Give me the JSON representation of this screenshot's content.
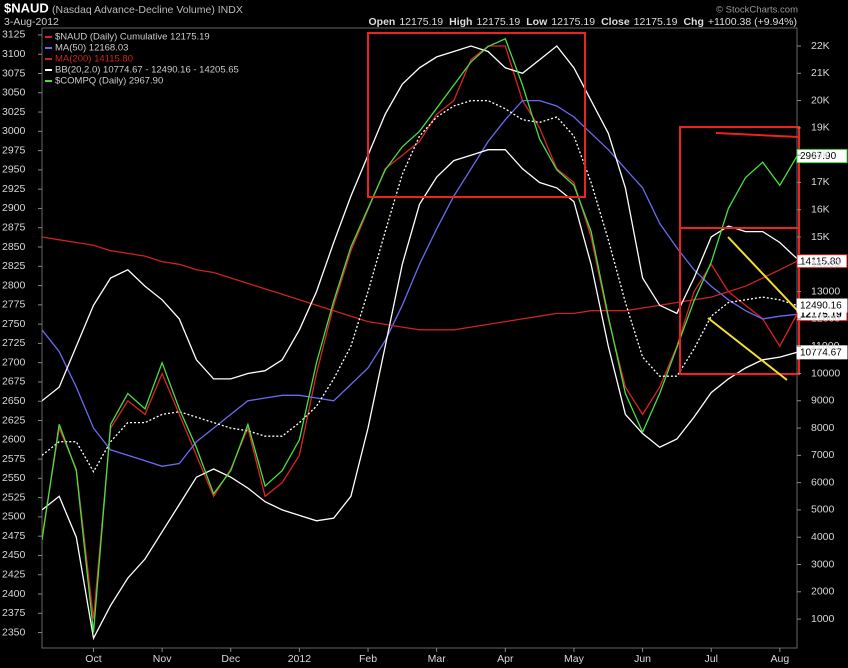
{
  "chart_data": {
    "type": "line",
    "title": "$NAUD",
    "subtitle": "(Nasdaq Advance-Decline Volume) INDX",
    "date": "3-Aug-2012",
    "quote": [
      {
        "label": "Open",
        "value": "12175.19"
      },
      {
        "label": "High",
        "value": "12175.19"
      },
      {
        "label": "Low",
        "value": "12175.19"
      },
      {
        "label": "Close",
        "value": "12175.19"
      },
      {
        "label": "Chg",
        "value": "+1100.38 (+9.94%)"
      }
    ],
    "watermark": "© StockCharts.com",
    "categories": [
      null,
      null,
      null,
      "Oct",
      null,
      null,
      null,
      "Nov",
      null,
      null,
      null,
      "Dec",
      null,
      null,
      null,
      "2012",
      null,
      null,
      null,
      "Feb",
      null,
      null,
      null,
      "Mar",
      null,
      null,
      null,
      "Apr",
      null,
      null,
      null,
      "May",
      null,
      null,
      null,
      "Jun",
      null,
      null,
      null,
      "Jul",
      null,
      null,
      null,
      "Aug",
      null
    ],
    "ylim": [
      2330,
      3134
    ],
    "yticks": [
      2350,
      2375,
      2400,
      2425,
      2450,
      2475,
      2500,
      2525,
      2550,
      2575,
      2600,
      2625,
      2650,
      2675,
      2700,
      2725,
      2750,
      2775,
      2800,
      2825,
      2850,
      2875,
      2900,
      2925,
      2950,
      2975,
      3000,
      3025,
      3050,
      3075,
      3100,
      3125
    ],
    "y2lim": [
      -60,
      22660
    ],
    "y2ticks": [
      1000,
      2000,
      3000,
      4000,
      5000,
      6000,
      7000,
      8000,
      9000,
      10000,
      11000,
      12000,
      13000,
      14000,
      {
        "value": 15000,
        "label": "15K"
      },
      {
        "value": 16000,
        "label": "16K"
      },
      {
        "value": 17000,
        "label": "17K"
      },
      {
        "value": 18000,
        "label": "18K"
      },
      {
        "value": 19000,
        "label": "19K"
      },
      {
        "value": 20000,
        "label": "20K"
      },
      {
        "value": 21000,
        "label": "21K"
      },
      {
        "value": 22000,
        "label": "22K"
      }
    ],
    "grid": false,
    "series": [
      {
        "name": "$NAUD (Daily) Cumulative 12175.19",
        "color": "#dd2222",
        "axis": "y2",
        "last_label": "12175.19",
        "values": [
          4000,
          8000,
          6500,
          1000,
          8000,
          9000,
          8500,
          10000,
          8500,
          7000,
          5500,
          6500,
          8000,
          5500,
          6000,
          7000,
          10000,
          12500,
          14500,
          16000,
          17500,
          18000,
          18500,
          19500,
          20000,
          21500,
          22000,
          22000,
          20000,
          19000,
          17500,
          17000,
          15000,
          12000,
          9500,
          8500,
          9500,
          11000,
          13000,
          14000,
          13000,
          12500,
          12000,
          11000,
          12175.19
        ]
      },
      {
        "name": "MA(50) 12168.03",
        "color": "#6a6af0",
        "axis": "y2",
        "values": [
          11600,
          10800,
          9500,
          8000,
          7200,
          7000,
          6800,
          6600,
          6700,
          7500,
          8000,
          8500,
          9000,
          9100,
          9200,
          9200,
          9100,
          9000,
          9600,
          10200,
          11200,
          12500,
          14000,
          15300,
          16500,
          17500,
          18500,
          19300,
          20000,
          20000,
          19800,
          19400,
          18800,
          18200,
          17500,
          16800,
          15500,
          14600,
          13800,
          13200,
          12700,
          12300,
          12000,
          12100,
          12168.03
        ]
      },
      {
        "name": "MA(200) 14115.80",
        "color": "#cc2222",
        "axis": "y2",
        "last_label": "14115.80",
        "values": [
          15000,
          14900,
          14800,
          14700,
          14500,
          14400,
          14300,
          14100,
          14000,
          13800,
          13700,
          13500,
          13300,
          13100,
          12900,
          12700,
          12500,
          12300,
          12100,
          11900,
          11800,
          11700,
          11600,
          11600,
          11600,
          11700,
          11800,
          11900,
          12000,
          12100,
          12200,
          12200,
          12300,
          12300,
          12300,
          12400,
          12500,
          12600,
          12700,
          12800,
          13000,
          13200,
          13500,
          13800,
          14115.8
        ]
      },
      {
        "name": "BB(20,2.0) 10774.67 - 12490.16 - 14205.65",
        "color": "#ffffff",
        "axis": "y2",
        "last_label": "12490.16",
        "lower_label": "10774.67",
        "values": [
          7000,
          7500,
          7500,
          6400,
          7500,
          8200,
          8200,
          8500,
          8600,
          8400,
          8200,
          8000,
          7900,
          7700,
          7700,
          8200,
          8800,
          9800,
          11000,
          13000,
          15200,
          17300,
          18700,
          19400,
          19800,
          20000,
          20000,
          19700,
          19300,
          19200,
          19400,
          18700,
          17000,
          14900,
          12600,
          10600,
          9900,
          9900,
          10900,
          12100,
          12600,
          12700,
          12800,
          12700,
          12490.16
        ],
        "upper": [
          9000,
          9500,
          11000,
          12500,
          13500,
          13800,
          13200,
          12700,
          12000,
          10500,
          9800,
          9800,
          10000,
          10100,
          10500,
          11600,
          13000,
          14800,
          16500,
          18000,
          19500,
          20600,
          21200,
          21600,
          21800,
          22000,
          21800,
          21200,
          21000,
          21500,
          22000,
          21200,
          20000,
          18800,
          16800,
          13500,
          12500,
          12200,
          13500,
          15000,
          15400,
          15200,
          15200,
          14800,
          14205.65
        ],
        "lower": [
          5000,
          5500,
          4000,
          300,
          1500,
          2500,
          3200,
          4200,
          5200,
          6200,
          6500,
          6200,
          5800,
          5300,
          5000,
          4800,
          4600,
          4700,
          5500,
          8000,
          11000,
          14000,
          16200,
          17200,
          17800,
          18000,
          18200,
          18200,
          17500,
          17000,
          16800,
          16300,
          14000,
          11000,
          8500,
          7800,
          7300,
          7600,
          8400,
          9300,
          9800,
          10200,
          10500,
          10600,
          10774.67
        ]
      },
      {
        "name": "$COMPQ (Daily) 2967.90",
        "color": "#44e044",
        "axis": "y",
        "last_label": "2967.90",
        "values": [
          2470,
          2620,
          2560,
          2350,
          2620,
          2660,
          2640,
          2700,
          2640,
          2590,
          2530,
          2560,
          2620,
          2540,
          2560,
          2600,
          2700,
          2780,
          2850,
          2900,
          2950,
          2980,
          3000,
          3030,
          3060,
          3090,
          3110,
          3120,
          3060,
          2990,
          2950,
          2930,
          2870,
          2760,
          2660,
          2610,
          2660,
          2720,
          2780,
          2830,
          2900,
          2940,
          2960,
          2930,
          2967.9
        ]
      }
    ]
  }
}
